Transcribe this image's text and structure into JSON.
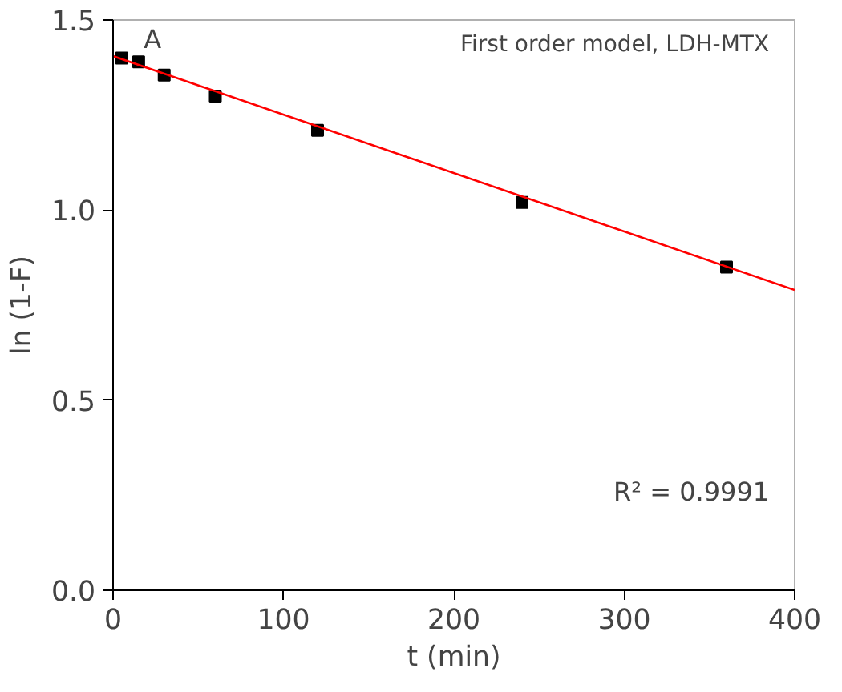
{
  "chart_data": {
    "type": "scatter",
    "xlabel": "t (min)",
    "ylabel": "ln (1-F)",
    "annotations": [
      "A",
      "First order model, LDH-MTX",
      "R² = 0.9991"
    ],
    "xlim": [
      0,
      400
    ],
    "ylim": [
      0,
      1.5
    ],
    "xticks": [
      0,
      100,
      200,
      300,
      400
    ],
    "yticks": [
      {
        "value": 0,
        "label": "0.0"
      },
      {
        "value": 0.5,
        "label": "0.5"
      },
      {
        "value": 1,
        "label": "1.0"
      },
      {
        "value": 1.5,
        "label": "1.5"
      }
    ],
    "grid": false,
    "marker": "square",
    "series": [
      {
        "color": "#000000",
        "x": [
          5,
          15,
          30,
          60,
          120,
          240,
          360
        ],
        "values": [
          1.4,
          1.39,
          1.355,
          1.3,
          1.21,
          1.02,
          0.85
        ]
      },
      {
        "type": "line",
        "color": "#ff0000",
        "line_style": "solid",
        "marker": "none",
        "x": [
          0,
          400
        ],
        "values": [
          1.405,
          0.79
        ]
      }
    ]
  }
}
